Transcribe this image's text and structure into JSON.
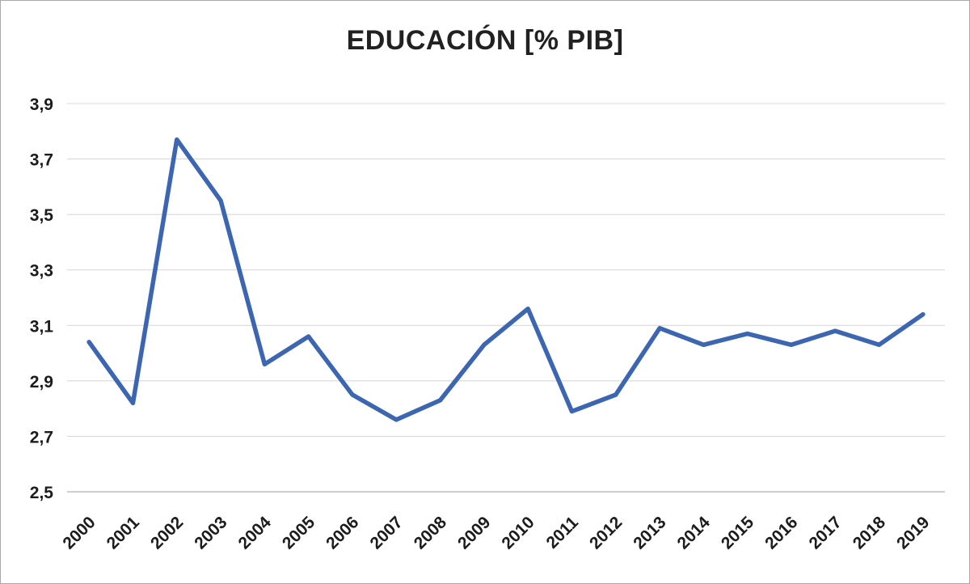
{
  "chart_data": {
    "type": "line",
    "title": "EDUCACIÓN [% PIB]",
    "categories": [
      "2000",
      "2001",
      "2002",
      "2003",
      "2004",
      "2005",
      "2006",
      "2007",
      "2008",
      "2009",
      "2010",
      "2011",
      "2012",
      "2013",
      "2014",
      "2015",
      "2016",
      "2017",
      "2018",
      "2019"
    ],
    "values": [
      3.04,
      2.82,
      3.77,
      3.55,
      2.96,
      3.06,
      2.85,
      2.76,
      2.83,
      3.03,
      3.16,
      2.79,
      2.85,
      3.09,
      3.03,
      3.07,
      3.03,
      3.08,
      3.03,
      3.14
    ],
    "ylim": [
      2.5,
      3.9
    ],
    "ytick_step": 0.2,
    "ytick_labels": [
      "2,5",
      "2,7",
      "2,9",
      "3,1",
      "3,3",
      "3,5",
      "3,7",
      "3,9"
    ],
    "xlabel": "",
    "ylabel": "",
    "grid": true,
    "legend": "none",
    "line_color": "#3c66b1",
    "grid_color": "#d9d9d9",
    "axis_color": "#bdbdbd",
    "text_color": "#1c1c1c",
    "title_color": "#212121",
    "decimal_separator": ","
  }
}
